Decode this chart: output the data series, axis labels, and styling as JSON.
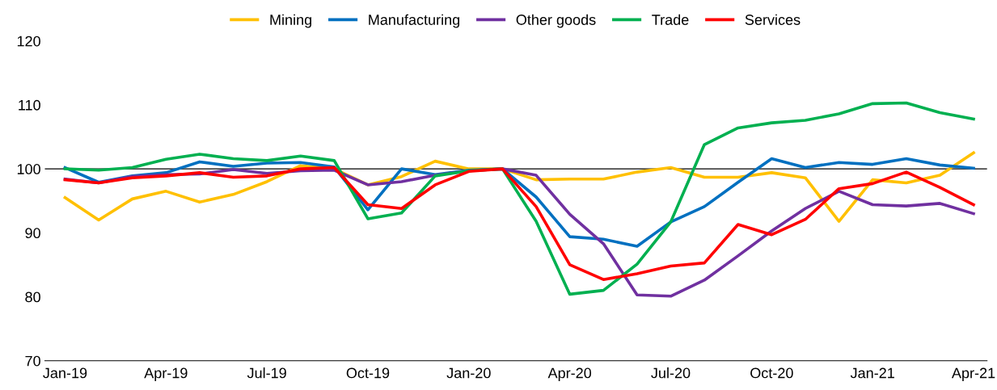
{
  "chart_data": {
    "type": "line",
    "categories": [
      "Jan-19",
      null,
      null,
      "Apr-19",
      null,
      null,
      "Jul-19",
      null,
      null,
      "Oct-19",
      null,
      null,
      "Jan-20",
      null,
      null,
      "Apr-20",
      null,
      null,
      "Jul-20",
      null,
      null,
      "Oct-20",
      null,
      null,
      "Jan-21",
      null,
      null,
      "Apr-21"
    ],
    "series": [
      {
        "name": "Mining",
        "color": "#ffc000",
        "values": [
          95.5,
          92,
          95.3,
          96.5,
          94.8,
          96,
          98,
          100.5,
          100,
          97.5,
          98.8,
          101.2,
          100,
          100,
          98.3,
          98.4,
          98.4,
          99.5,
          100.2,
          98.7,
          98.7,
          99.4,
          98.6,
          91.8,
          98.3,
          97.8,
          99,
          102.5
        ]
      },
      {
        "name": "Manufacturing",
        "color": "#0070c0",
        "values": [
          100.2,
          97.9,
          98.9,
          99.4,
          101.1,
          100.4,
          100.9,
          101,
          100.3,
          93.6,
          100,
          99.1,
          99.8,
          100,
          95.6,
          89.4,
          89,
          87.9,
          91.7,
          94.1,
          97.9,
          101.6,
          100.2,
          101,
          100.7,
          101.6,
          100.6,
          100.1
        ]
      },
      {
        "name": "Other goods",
        "color": "#7030a0",
        "values": [
          98.4,
          97.8,
          98.8,
          99.1,
          99.2,
          99.9,
          99.3,
          99.7,
          99.8,
          97.5,
          98,
          99,
          99.7,
          100,
          99,
          92.9,
          88.3,
          80.3,
          80.1,
          82.6,
          86.4,
          90.3,
          93.8,
          96.5,
          94.4,
          94.2,
          94.6,
          93
        ]
      },
      {
        "name": "Trade",
        "color": "#00b050",
        "values": [
          100,
          99.8,
          100.2,
          101.5,
          102.3,
          101.6,
          101.3,
          102,
          101.3,
          92.2,
          93.1,
          98.9,
          99.7,
          100,
          91.8,
          80.4,
          81,
          85.1,
          91.7,
          103.8,
          106.4,
          107.2,
          107.6,
          108.6,
          110.2,
          110.3,
          108.8,
          107.8
        ]
      },
      {
        "name": "Services",
        "color": "#ff0000",
        "values": [
          98.3,
          97.8,
          98.6,
          98.9,
          99.4,
          98.7,
          98.9,
          100,
          100.2,
          94.4,
          93.8,
          97.5,
          99.6,
          100,
          94.1,
          85,
          82.7,
          83.6,
          84.8,
          85.3,
          91.3,
          89.7,
          92.1,
          96.9,
          97.7,
          99.5,
          97.1,
          94.4
        ]
      }
    ],
    "ylim": [
      70,
      120
    ],
    "yticks": [
      70,
      80,
      90,
      100,
      110,
      120
    ],
    "ref_lines": [
      {
        "axis": "y",
        "value": 100,
        "color": "#000000"
      }
    ],
    "legend": "top",
    "grid": false,
    "marker": "none",
    "line_style": "solid"
  }
}
